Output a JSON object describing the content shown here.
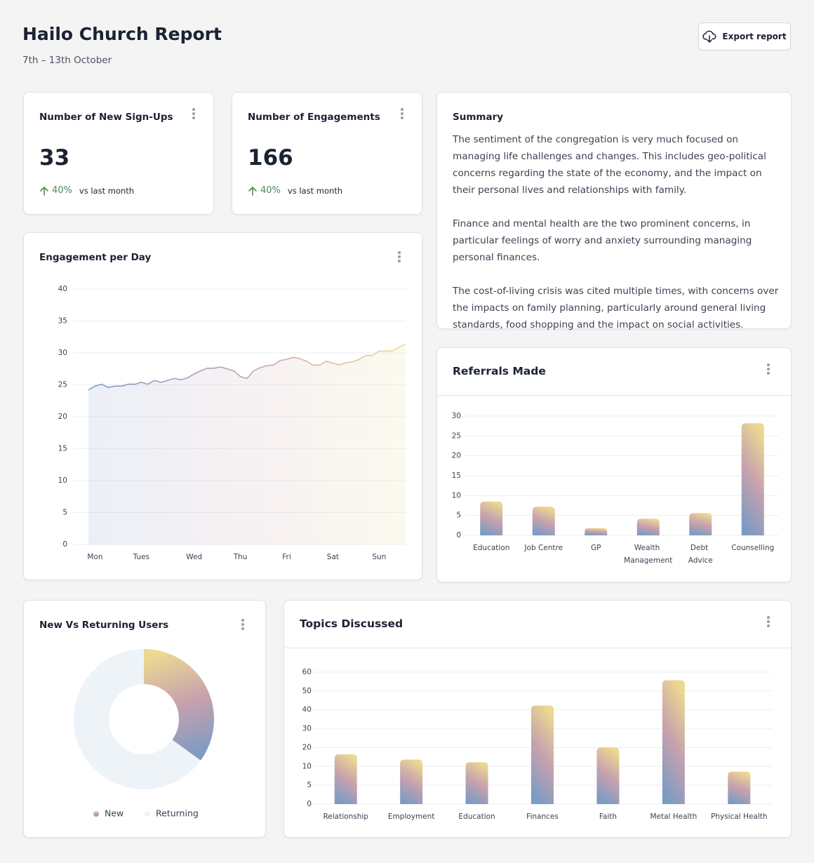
{
  "header": {
    "title": "Hailo Church Report",
    "subtitle": "7th – 13th October",
    "export_button": "Export report"
  },
  "kpis": [
    {
      "title": "Number of New Sign-Ups",
      "value": 33,
      "change": "40%",
      "comparison": "vs last month"
    },
    {
      "title": "Number of Engagements",
      "value": 166,
      "change": "40%",
      "comparison": "vs last month"
    }
  ],
  "summary": {
    "title": "Summary",
    "paragraphs": [
      "The sentiment of the congregation is very much focused on managing life challenges and changes. This includes geo-political concerns regarding the state of the economy, and the impact on their personal lives and relationships with family.",
      "Finance and mental health are the two prominent concerns, in particular feelings of worry and anxiety surrounding managing personal finances.",
      "The cost-of-living crisis was cited multiple times, with concerns over the impacts on family planning, particularly around general living standards, food shopping and the impact on social activities."
    ]
  },
  "chart_data": [
    {
      "type": "line",
      "title": "Engagement per Day",
      "categories": [
        null,
        "Mon",
        null,
        null,
        null,
        null,
        null,
        null,
        "Tues",
        null,
        null,
        null,
        null,
        null,
        null,
        null,
        "Wed",
        null,
        null,
        null,
        null,
        null,
        null,
        "Thu",
        null,
        null,
        null,
        null,
        null,
        null,
        "Fri",
        null,
        null,
        null,
        null,
        null,
        null,
        "Sat",
        null,
        null,
        null,
        null,
        null,
        null,
        "Sun",
        null,
        null,
        null,
        null
      ],
      "values": [
        24.2,
        24.8,
        25.1,
        24.6,
        24.8,
        24.8,
        25.1,
        25.1,
        25.4,
        25.1,
        25.7,
        25.4,
        25.7,
        26.0,
        25.8,
        26.1,
        26.7,
        27.2,
        27.6,
        27.6,
        27.8,
        27.5,
        27.2,
        26.3,
        26.0,
        27.2,
        27.7,
        28.0,
        28.1,
        28.8,
        29.0,
        29.3,
        29.1,
        28.7,
        28.1,
        28.1,
        28.7,
        28.4,
        28.1,
        28.5,
        28.6,
        29.0,
        29.6,
        29.6,
        30.3,
        30.3,
        30.3,
        30.9,
        31.4
      ],
      "ylim": [
        0,
        40
      ],
      "yticks": [
        0,
        5,
        10,
        15,
        20,
        25,
        30,
        35,
        40
      ],
      "grid": true,
      "gradient": [
        "#7b9bc3",
        "#c7a1ae",
        "#ecd990"
      ]
    },
    {
      "type": "bar",
      "title": "Referrals Made",
      "categories": [
        "Education",
        "Job Centre",
        "GP",
        "Wealth Management",
        "Debt   Advice",
        "Counselling"
      ],
      "values": [
        8.5,
        7.2,
        1.8,
        4.2,
        5.6,
        28.2
      ],
      "ylim": [
        0,
        30
      ],
      "yticks": [
        0,
        5,
        10,
        15,
        20,
        25,
        30
      ],
      "grid": true,
      "gradient": [
        "#7b9bc3",
        "#c7a1ae",
        "#ecd990"
      ]
    },
    {
      "type": "pie",
      "title": "New Vs Returning Users",
      "categories": [
        "New",
        "Returning"
      ],
      "values": [
        35,
        65
      ],
      "colors": [
        "#c7a1ae",
        "#eef3f8"
      ],
      "gradient": [
        "#7b9bc3",
        "#c7a1ae",
        "#ecd990"
      ]
    },
    {
      "type": "bar",
      "title": "Topics Discussed",
      "categories": [
        "Relationship",
        "Employment",
        "Education",
        "Finances",
        "Faith",
        "Metal Health",
        "Physical Health"
      ],
      "values": [
        16.4,
        13.6,
        12.2,
        42.3,
        20,
        55.7,
        8.6
      ],
      "ylim": [
        0,
        60
      ],
      "yticks": [
        0,
        5,
        10,
        20,
        30,
        40,
        50,
        60
      ],
      "even_tick_spacing": true,
      "grid": true,
      "gradient": [
        "#7b9bc3",
        "#c7a1ae",
        "#ecd990"
      ]
    }
  ]
}
